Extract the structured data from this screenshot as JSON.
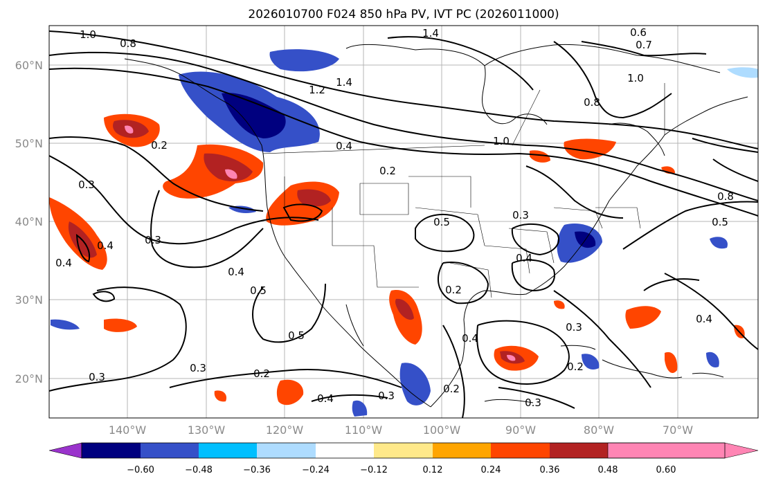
{
  "title": "2026010700 F024 850 hPa PV, IVT PC (2026011000)",
  "map": {
    "lat_ticks": [
      "60°N",
      "50°N",
      "40°N",
      "30°N",
      "20°N"
    ],
    "lon_ticks": [
      "140°W",
      "130°W",
      "120°W",
      "110°W",
      "100°W",
      "90°W",
      "80°W",
      "70°W"
    ],
    "contour_labels": [
      "1.0",
      "0.8",
      "1.4",
      "0.6",
      "0.7",
      "1.2",
      "1.4",
      "1.0",
      "0.8",
      "0.4",
      "0.2",
      "1.0",
      "0.5",
      "0.3",
      "0.8",
      "0.5",
      "0.3",
      "0.4",
      "0.4",
      "0.3",
      "0.4",
      "0.5",
      "0.5",
      "0.4",
      "0.2",
      "0.3",
      "0.2",
      "0.4",
      "0.3",
      "0.4",
      "0.2",
      "0.3",
      "0.3",
      "0.4",
      "0.2",
      "0.3",
      "0.2"
    ]
  },
  "colorbar": {
    "ticks": [
      "−0.60",
      "−0.48",
      "−0.36",
      "−0.24",
      "−0.12",
      "0.12",
      "0.24",
      "0.36",
      "0.48",
      "0.60"
    ],
    "colors": [
      "#9a33cc",
      "#00007f",
      "#3550c8",
      "#00bfff",
      "#aedcff",
      "#ffffff",
      "#ffe98a",
      "#ffa500",
      "#ff4500",
      "#b22222",
      "#ff85b4"
    ]
  }
}
